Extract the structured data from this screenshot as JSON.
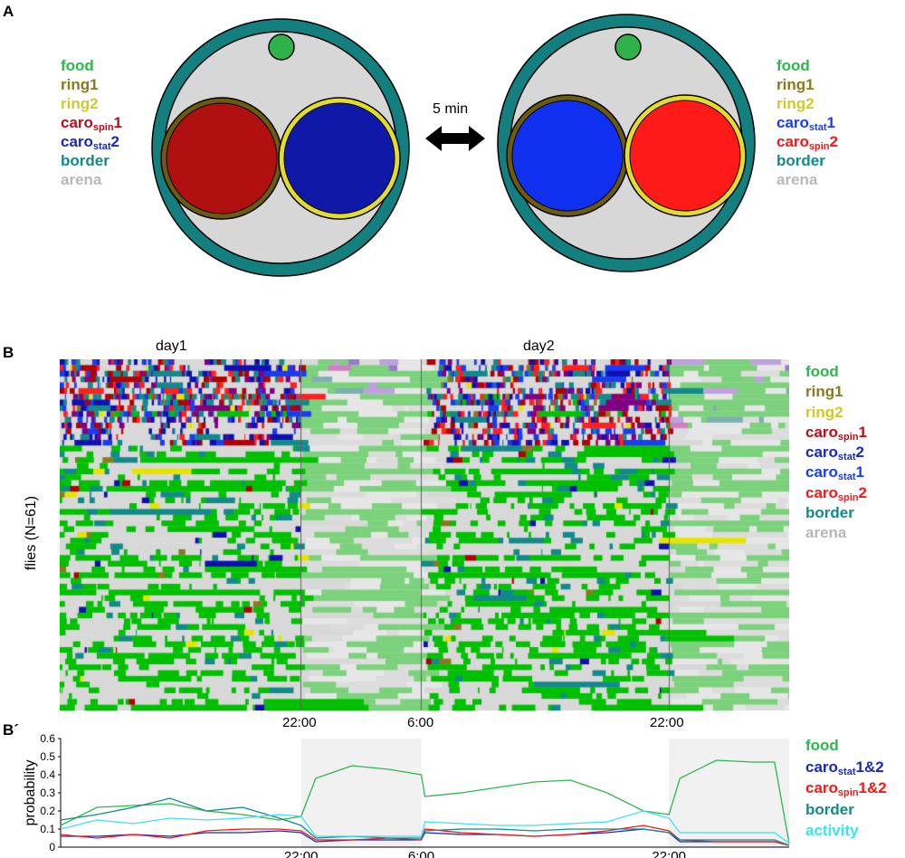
{
  "panels": {
    "a": {
      "letter": "A",
      "transition_label": "5 min",
      "legend_left": [
        {
          "text": "food",
          "color": "#2db84d"
        },
        {
          "text": "ring1",
          "color": "#8a7a1e"
        },
        {
          "text": "ring2",
          "color": "#d0c92a"
        },
        {
          "text": "caro",
          "sub": "spin",
          "suffix": "1",
          "color": "#b4101a"
        },
        {
          "text": "caro",
          "sub": "stat",
          "suffix": "2",
          "color": "#1a2ab8"
        },
        {
          "text": "border",
          "color": "#138a8a"
        },
        {
          "text": "arena",
          "color": "#b8b8b8"
        }
      ],
      "legend_right": [
        {
          "text": "food",
          "color": "#2db84d"
        },
        {
          "text": "ring1",
          "color": "#8a7a1e"
        },
        {
          "text": "ring2",
          "color": "#d0c92a"
        },
        {
          "text": "caro",
          "sub": "stat",
          "suffix": "1",
          "color": "#1a3cf0"
        },
        {
          "text": "caro",
          "sub": "spin",
          "suffix": "2",
          "color": "#f01a1a"
        },
        {
          "text": "border",
          "color": "#138a8a"
        },
        {
          "text": "arena",
          "color": "#b8b8b8"
        }
      ],
      "colors": {
        "arena_fill": "#d7d7d7",
        "border_ring": "#137f7f",
        "food_dot": "#2fb24b",
        "ring1": "#6b5a10",
        "ring2": "#e4dc2a",
        "left_caro_a": "#b0100f",
        "left_caro_b": "#1018a8",
        "right_caro_a": "#1030f0",
        "right_caro_b": "#ff1a1a"
      }
    },
    "b": {
      "letter": "B",
      "day_labels": [
        "day1",
        "day2"
      ],
      "ylabel": "flies (N=61)",
      "x_ticks": [
        "22:00",
        "6:00",
        "22:00"
      ],
      "legend": [
        {
          "text": "food",
          "color": "#2db84d"
        },
        {
          "text": "ring1",
          "color": "#8a7a1e"
        },
        {
          "text": "ring2",
          "color": "#d0c92a"
        },
        {
          "text": "caro",
          "sub": "spin",
          "suffix": "1",
          "color": "#b4101a"
        },
        {
          "text": "caro",
          "sub": "stat",
          "suffix": "2",
          "color": "#1a2ab8"
        },
        {
          "text": "caro",
          "sub": "stat",
          "suffix": "1",
          "color": "#1a3cf0"
        },
        {
          "text": "caro",
          "sub": "spin",
          "suffix": "2",
          "color": "#f01a1a"
        },
        {
          "text": "border",
          "color": "#138a8a"
        },
        {
          "text": "arena",
          "color": "#b8b8b8"
        }
      ]
    },
    "b2": {
      "letter": "B´",
      "x_ticks": [
        "22:00",
        "6:00",
        "22:00"
      ],
      "legend": [
        {
          "text": "food",
          "color": "#2db84d"
        },
        {
          "text": "caro",
          "sub": "stat",
          "suffix": "1&2",
          "color": "#1a2ab8"
        },
        {
          "text": "caro",
          "sub": "spin",
          "suffix": "1&2",
          "color": "#f01a1a"
        },
        {
          "text": "border",
          "color": "#138a8a"
        },
        {
          "text": "activity",
          "color": "#40e0f0"
        }
      ]
    }
  },
  "chart_data": {
    "type": "line",
    "ylabel": "probability",
    "ylim": [
      0,
      0.6
    ],
    "y_ticks": [
      0,
      0.1,
      0.2,
      0.3,
      0.4,
      0.5,
      0.6
    ],
    "x_tick_labels": [
      "22:00",
      "6:00",
      "22:00"
    ],
    "night_shading": [
      [
        0.33,
        0.495
      ],
      [
        0.835,
        1.0
      ]
    ],
    "x": [
      0.0,
      0.05,
      0.1,
      0.15,
      0.2,
      0.25,
      0.3,
      0.33,
      0.35,
      0.4,
      0.45,
      0.495,
      0.5,
      0.55,
      0.6,
      0.65,
      0.7,
      0.75,
      0.8,
      0.835,
      0.85,
      0.9,
      0.95,
      0.98,
      1.0
    ],
    "series": [
      {
        "name": "food",
        "color": "#2db84d",
        "values": [
          0.12,
          0.22,
          0.23,
          0.24,
          0.2,
          0.18,
          0.15,
          0.17,
          0.38,
          0.45,
          0.43,
          0.4,
          0.28,
          0.3,
          0.33,
          0.36,
          0.37,
          0.3,
          0.2,
          0.18,
          0.38,
          0.48,
          0.47,
          0.47,
          0.02
        ]
      },
      {
        "name": "caro_stat 1&2",
        "color": "#1a2ab8",
        "values": [
          0.06,
          0.06,
          0.07,
          0.06,
          0.08,
          0.08,
          0.09,
          0.08,
          0.03,
          0.04,
          0.04,
          0.04,
          0.08,
          0.07,
          0.07,
          0.06,
          0.07,
          0.08,
          0.1,
          0.08,
          0.03,
          0.03,
          0.03,
          0.03,
          0.01
        ]
      },
      {
        "name": "caro_spin 1&2",
        "color": "#f01a1a",
        "values": [
          0.07,
          0.05,
          0.07,
          0.05,
          0.09,
          0.1,
          0.1,
          0.09,
          0.04,
          0.04,
          0.05,
          0.04,
          0.1,
          0.08,
          0.07,
          0.06,
          0.07,
          0.09,
          0.12,
          0.09,
          0.04,
          0.03,
          0.03,
          0.03,
          0.01
        ]
      },
      {
        "name": "border",
        "color": "#138a8a",
        "values": [
          0.15,
          0.18,
          0.22,
          0.27,
          0.2,
          0.22,
          0.16,
          0.12,
          0.05,
          0.06,
          0.05,
          0.05,
          0.09,
          0.1,
          0.1,
          0.09,
          0.1,
          0.1,
          0.1,
          0.08,
          0.04,
          0.04,
          0.04,
          0.04,
          0.01
        ]
      },
      {
        "name": "activity",
        "color": "#40e0f0",
        "values": [
          0.1,
          0.15,
          0.13,
          0.16,
          0.15,
          0.16,
          0.18,
          0.17,
          0.06,
          0.06,
          0.06,
          0.06,
          0.14,
          0.13,
          0.12,
          0.12,
          0.13,
          0.14,
          0.2,
          0.16,
          0.08,
          0.08,
          0.08,
          0.08,
          0.02
        ]
      }
    ]
  }
}
